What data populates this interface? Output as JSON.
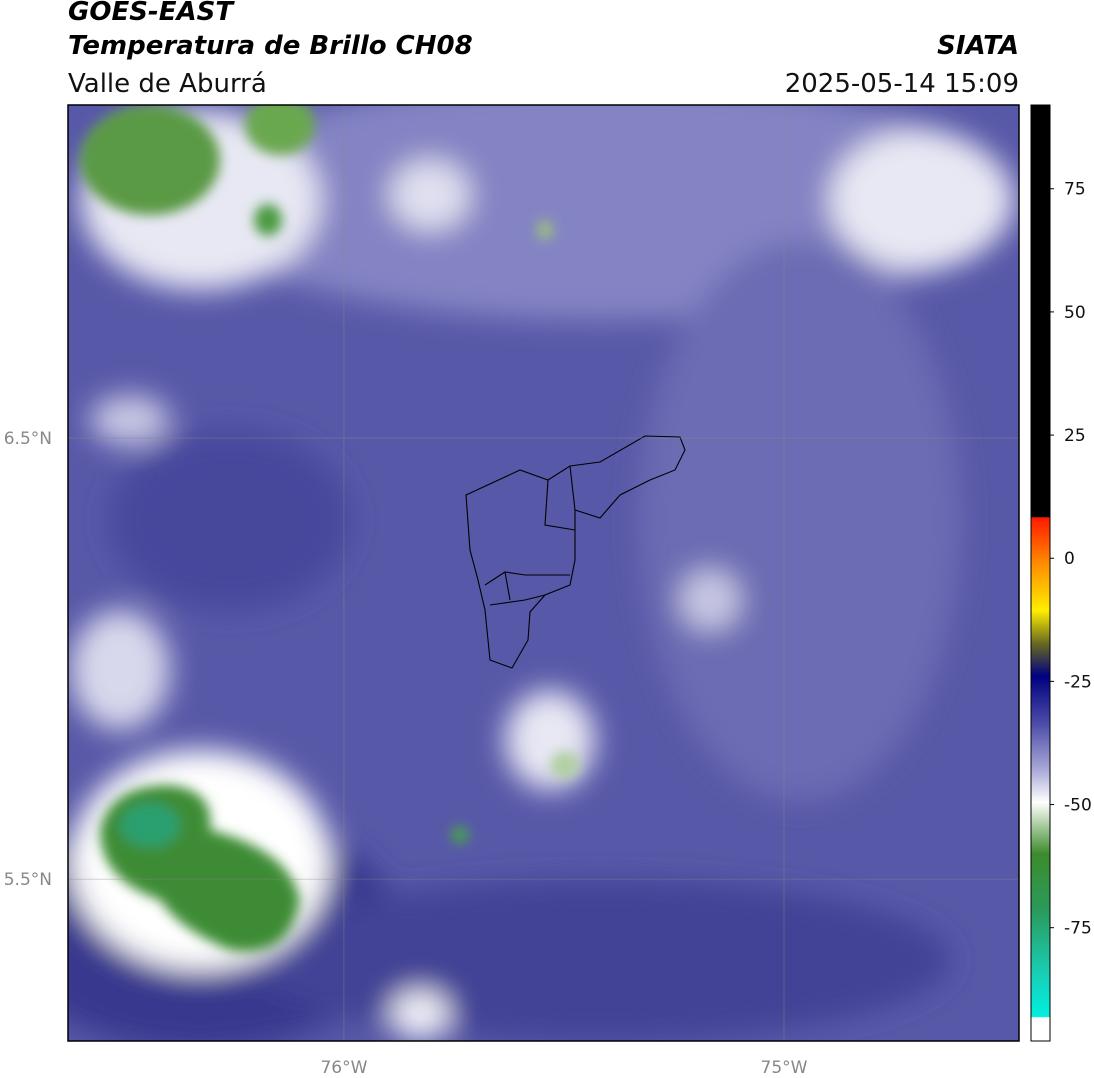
{
  "header": {
    "title": "GOES-EAST",
    "subtitle": "Temperatura de Brillo CH08",
    "region": "Valle de Aburrá",
    "source": "SIATA",
    "datetime": "2025-05-14 15:09"
  },
  "map": {
    "xlim": [
      -76.627,
      -74.466
    ],
    "ylim": [
      5.133,
      7.255
    ],
    "xticks": [
      {
        "value": -76,
        "label": "76°W"
      },
      {
        "value": -75,
        "label": "75°W"
      }
    ],
    "yticks": [
      {
        "value": 6.5,
        "label": "6.5°N"
      },
      {
        "value": 5.5,
        "label": "5.5°N"
      }
    ]
  },
  "colorbar": {
    "clim": [
      -98,
      92
    ],
    "ticks": [
      75,
      50,
      25,
      0,
      -25,
      -50,
      -75
    ]
  }
}
